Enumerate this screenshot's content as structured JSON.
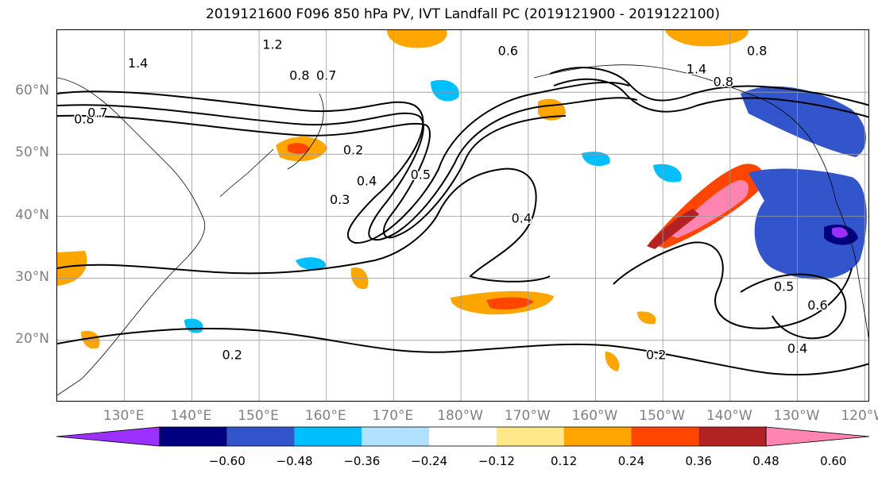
{
  "title": "2019121600 F096 850 hPa PV, IVT Landfall PC (2019121900 - 2019122100)",
  "lat_labels": [
    "60°N",
    "50°N",
    "40°N",
    "30°N",
    "20°N"
  ],
  "lon_labels": [
    "130°E",
    "140°E",
    "150°E",
    "160°E",
    "170°E",
    "180°W",
    "170°W",
    "160°W",
    "150°W",
    "140°W",
    "130°W",
    "120°W"
  ],
  "contour_labels": [
    {
      "text": "1.2",
      "lon": 152,
      "lat": 67
    },
    {
      "text": "0.6",
      "lon": 187,
      "lat": 66
    },
    {
      "text": "0.8",
      "lon": 224,
      "lat": 66
    },
    {
      "text": "1.4",
      "lon": 132,
      "lat": 64
    },
    {
      "text": "0.8",
      "lon": 156,
      "lat": 62
    },
    {
      "text": "0.7",
      "lon": 160,
      "lat": 62
    },
    {
      "text": "1.4",
      "lon": 215,
      "lat": 63
    },
    {
      "text": "0.8",
      "lon": 219,
      "lat": 61
    },
    {
      "text": "0.8",
      "lon": 124,
      "lat": 55
    },
    {
      "text": "0.7",
      "lon": 126,
      "lat": 56
    },
    {
      "text": "0.2",
      "lon": 164,
      "lat": 50
    },
    {
      "text": "0.4",
      "lon": 166,
      "lat": 45
    },
    {
      "text": "0.3",
      "lon": 162,
      "lat": 42
    },
    {
      "text": "0.5",
      "lon": 174,
      "lat": 46
    },
    {
      "text": "0.4",
      "lon": 189,
      "lat": 39
    },
    {
      "text": "0.5",
      "lon": 228,
      "lat": 28
    },
    {
      "text": "0.6",
      "lon": 233,
      "lat": 25
    },
    {
      "text": "0.4",
      "lon": 230,
      "lat": 18
    },
    {
      "text": "0.2",
      "lon": 209,
      "lat": 17
    },
    {
      "text": "0.2",
      "lon": 146,
      "lat": 17
    }
  ],
  "colorbar": {
    "colors": [
      "#9b30ff",
      "#000080",
      "#3355cc",
      "#00bfff",
      "#b0e2ff",
      "#ffffff",
      "#ffe88a",
      "#ffa500",
      "#ff4500",
      "#b22222",
      "#ff85b0"
    ],
    "ticks": [
      "−0.60",
      "−0.48",
      "−0.36",
      "−0.24",
      "−0.12",
      "0.12",
      "0.24",
      "0.36",
      "0.48",
      "0.60"
    ]
  }
}
